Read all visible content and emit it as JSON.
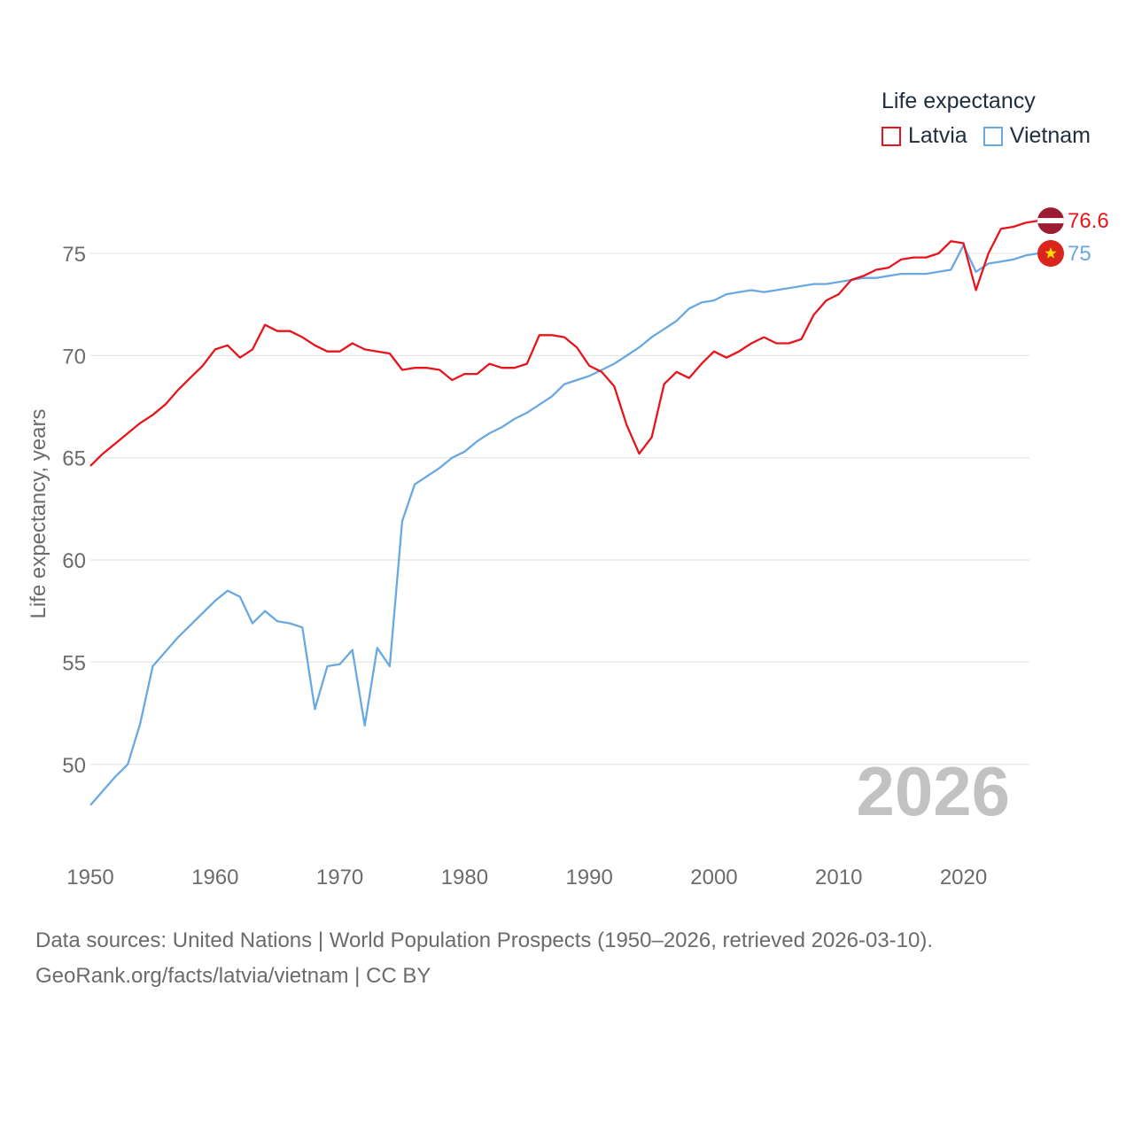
{
  "legend": {
    "title": "Life expectancy",
    "items": [
      {
        "name": "Latvia",
        "color": "#e8141c"
      },
      {
        "name": "Vietnam",
        "color": "#6aa8e2"
      }
    ]
  },
  "sources": {
    "line1": "Data sources: United Nations | World Population Prospects (1950–2026, retrieved 2026-03-10).",
    "line2": "GeoRank.org/facts/latvia/vietnam | CC BY"
  },
  "chart_data": {
    "type": "line",
    "title": "Life expectancy",
    "xlabel": "",
    "ylabel": "Life expectancy, years",
    "year_label": "2026",
    "xlim": [
      1950,
      2026
    ],
    "ylim": [
      47,
      80
    ],
    "x_ticks": [
      1950,
      1960,
      1970,
      1980,
      1990,
      2000,
      2010,
      2020
    ],
    "y_ticks": [
      50,
      55,
      60,
      65,
      70,
      75
    ],
    "grid": true,
    "x": [
      1950,
      1951,
      1952,
      1953,
      1954,
      1955,
      1956,
      1957,
      1958,
      1959,
      1960,
      1961,
      1962,
      1963,
      1964,
      1965,
      1966,
      1967,
      1968,
      1969,
      1970,
      1971,
      1972,
      1973,
      1974,
      1975,
      1976,
      1977,
      1978,
      1979,
      1980,
      1981,
      1982,
      1983,
      1984,
      1985,
      1986,
      1987,
      1988,
      1989,
      1990,
      1991,
      1992,
      1993,
      1994,
      1995,
      1996,
      1997,
      1998,
      1999,
      2000,
      2001,
      2002,
      2003,
      2004,
      2005,
      2006,
      2007,
      2008,
      2009,
      2010,
      2011,
      2012,
      2013,
      2014,
      2015,
      2016,
      2017,
      2018,
      2019,
      2020,
      2021,
      2022,
      2023,
      2024,
      2025,
      2026
    ],
    "series": [
      {
        "name": "Latvia",
        "color": "#e8141c",
        "end_label": "76.6",
        "values": [
          64.6,
          65.2,
          65.7,
          66.2,
          66.7,
          67.1,
          67.6,
          68.3,
          68.9,
          69.5,
          70.3,
          70.5,
          69.9,
          70.3,
          71.5,
          71.2,
          71.2,
          70.9,
          70.5,
          70.2,
          70.2,
          70.6,
          70.3,
          70.2,
          70.1,
          69.3,
          69.4,
          69.4,
          69.3,
          68.8,
          69.1,
          69.1,
          69.6,
          69.4,
          69.4,
          69.6,
          71.0,
          71.0,
          70.9,
          70.4,
          69.5,
          69.2,
          68.5,
          66.6,
          65.2,
          66.0,
          68.6,
          69.2,
          68.9,
          69.6,
          70.2,
          69.9,
          70.2,
          70.6,
          70.9,
          70.6,
          70.6,
          70.8,
          72.0,
          72.7,
          73.0,
          73.7,
          73.9,
          74.2,
          74.3,
          74.7,
          74.8,
          74.8,
          75.0,
          75.6,
          75.5,
          73.2,
          75.0,
          76.2,
          76.3,
          76.5,
          76.6
        ]
      },
      {
        "name": "Vietnam",
        "color": "#6aa8e2",
        "end_label": "75",
        "values": [
          48.0,
          48.7,
          49.4,
          50.0,
          52.0,
          54.8,
          55.5,
          56.2,
          56.8,
          57.4,
          58.0,
          58.5,
          58.2,
          56.9,
          57.5,
          57.0,
          56.9,
          56.7,
          52.7,
          54.8,
          54.9,
          55.6,
          51.9,
          55.7,
          54.8,
          61.9,
          63.7,
          64.1,
          64.5,
          65.0,
          65.3,
          65.8,
          66.2,
          66.5,
          66.9,
          67.2,
          67.6,
          68.0,
          68.6,
          68.8,
          69.0,
          69.3,
          69.6,
          70.0,
          70.4,
          70.9,
          71.3,
          71.7,
          72.3,
          72.6,
          72.7,
          73.0,
          73.1,
          73.2,
          73.1,
          73.2,
          73.3,
          73.4,
          73.5,
          73.5,
          73.6,
          73.7,
          73.8,
          73.8,
          73.9,
          74.0,
          74.0,
          74.0,
          74.1,
          74.2,
          75.4,
          74.1,
          74.5,
          74.6,
          74.7,
          74.9,
          75.0
        ]
      }
    ]
  }
}
